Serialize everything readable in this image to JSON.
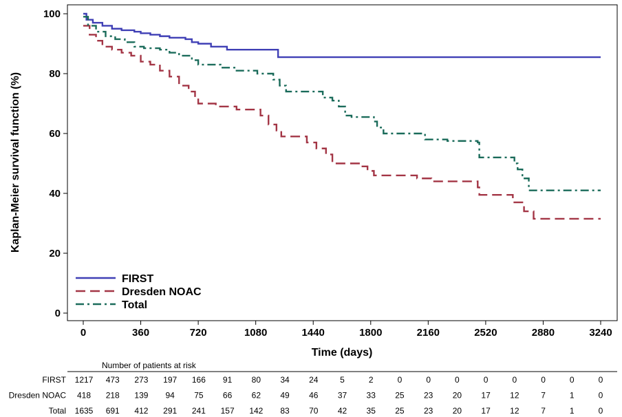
{
  "chart_data": {
    "type": "line",
    "subtype": "kaplan-meier step",
    "title": "",
    "xlabel": "Time (days)",
    "ylabel": "Kaplan-Meier survival function (%)",
    "xlim": [
      0,
      3240
    ],
    "ylim": [
      0,
      100
    ],
    "x_ticks": [
      0,
      360,
      720,
      1080,
      1440,
      1800,
      2160,
      2520,
      2880,
      3240
    ],
    "y_ticks": [
      0,
      20,
      40,
      60,
      80,
      100
    ],
    "grid": false,
    "legend_position": "bottom-left",
    "series": [
      {
        "name": "FIRST",
        "color": "#3f3fb5",
        "dash": "solid",
        "points": [
          [
            0,
            100
          ],
          [
            20,
            98
          ],
          [
            60,
            97
          ],
          [
            120,
            96
          ],
          [
            180,
            95
          ],
          [
            240,
            94.5
          ],
          [
            320,
            94
          ],
          [
            360,
            93.5
          ],
          [
            420,
            93
          ],
          [
            480,
            92.5
          ],
          [
            540,
            92
          ],
          [
            640,
            91.5
          ],
          [
            680,
            90.5
          ],
          [
            720,
            90
          ],
          [
            800,
            89
          ],
          [
            900,
            88
          ],
          [
            1080,
            88
          ],
          [
            1220,
            88
          ],
          [
            1220,
            85.5
          ],
          [
            3240,
            85.5
          ]
        ]
      },
      {
        "name": "Dresden NOAC",
        "color": "#a33545",
        "dash": "dashed",
        "points": [
          [
            0,
            96
          ],
          [
            40,
            93
          ],
          [
            80,
            91
          ],
          [
            120,
            89
          ],
          [
            180,
            88
          ],
          [
            240,
            87
          ],
          [
            300,
            86
          ],
          [
            360,
            84
          ],
          [
            420,
            83
          ],
          [
            480,
            81
          ],
          [
            540,
            79
          ],
          [
            600,
            76
          ],
          [
            660,
            74
          ],
          [
            700,
            72
          ],
          [
            720,
            70
          ],
          [
            830,
            69
          ],
          [
            960,
            68
          ],
          [
            1110,
            66
          ],
          [
            1160,
            63
          ],
          [
            1210,
            61
          ],
          [
            1240,
            59
          ],
          [
            1400,
            57
          ],
          [
            1460,
            55
          ],
          [
            1520,
            53
          ],
          [
            1560,
            50
          ],
          [
            1740,
            49
          ],
          [
            1780,
            47.5
          ],
          [
            1820,
            46
          ],
          [
            2090,
            45
          ],
          [
            2180,
            44
          ],
          [
            2470,
            42
          ],
          [
            2480,
            39.5
          ],
          [
            2690,
            37
          ],
          [
            2760,
            34
          ],
          [
            2820,
            31.5
          ],
          [
            3240,
            31.5
          ]
        ]
      },
      {
        "name": "Total",
        "color": "#1a6b5a",
        "dash": "dashdot",
        "points": [
          [
            0,
            99
          ],
          [
            30,
            96
          ],
          [
            80,
            94
          ],
          [
            140,
            92.5
          ],
          [
            200,
            91.5
          ],
          [
            260,
            90.5
          ],
          [
            320,
            89
          ],
          [
            380,
            88.5
          ],
          [
            480,
            88
          ],
          [
            540,
            87
          ],
          [
            600,
            86
          ],
          [
            680,
            84.5
          ],
          [
            720,
            83
          ],
          [
            860,
            82
          ],
          [
            960,
            81
          ],
          [
            1090,
            80
          ],
          [
            1190,
            78
          ],
          [
            1230,
            76
          ],
          [
            1270,
            74
          ],
          [
            1500,
            72
          ],
          [
            1560,
            71
          ],
          [
            1600,
            69
          ],
          [
            1640,
            66
          ],
          [
            1680,
            65.5
          ],
          [
            1820,
            64
          ],
          [
            1840,
            62
          ],
          [
            1880,
            60
          ],
          [
            2080,
            60
          ],
          [
            2140,
            58
          ],
          [
            2280,
            57.5
          ],
          [
            2470,
            57
          ],
          [
            2480,
            52
          ],
          [
            2700,
            50
          ],
          [
            2720,
            48
          ],
          [
            2750,
            45
          ],
          [
            2790,
            41
          ],
          [
            3240,
            41
          ]
        ]
      }
    ],
    "risk_table": {
      "title": "Number of patients at risk",
      "times": [
        0,
        180,
        360,
        540,
        720,
        900,
        1080,
        1260,
        1440,
        1620,
        1800,
        1980,
        2160,
        2340,
        2520,
        2700,
        2880,
        3060,
        3240
      ],
      "rows": [
        {
          "name": "FIRST",
          "counts": [
            1217,
            473,
            273,
            197,
            166,
            91,
            80,
            34,
            24,
            5,
            2,
            0,
            0,
            0,
            0,
            0,
            0,
            0,
            0
          ]
        },
        {
          "name": "Dresden NOAC",
          "counts": [
            418,
            218,
            139,
            94,
            75,
            66,
            62,
            49,
            46,
            37,
            33,
            25,
            23,
            20,
            17,
            12,
            7,
            1,
            0
          ]
        },
        {
          "name": "Total",
          "counts": [
            1635,
            691,
            412,
            291,
            241,
            157,
            142,
            83,
            70,
            42,
            35,
            25,
            23,
            20,
            17,
            12,
            7,
            1,
            0
          ]
        }
      ]
    }
  }
}
